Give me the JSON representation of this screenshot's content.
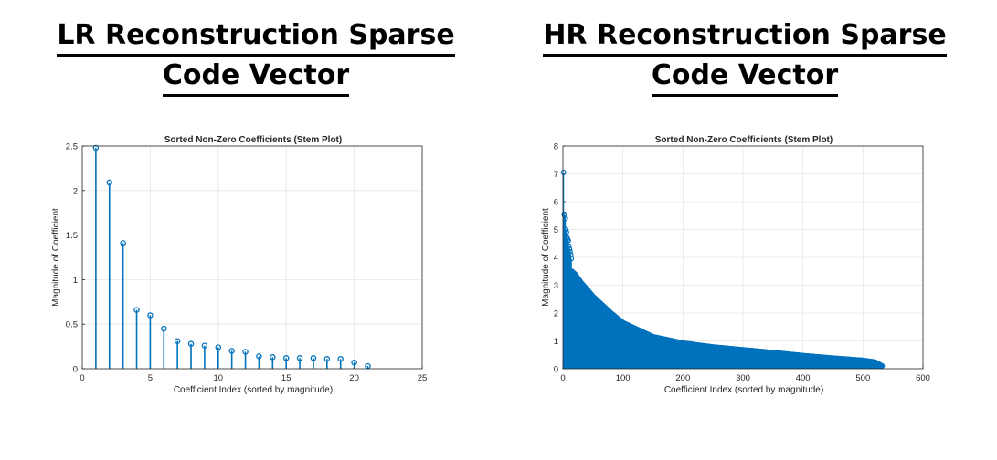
{
  "panels": {
    "left": {
      "heading_line1": "LR Reconstruction Sparse",
      "heading_line2": "Code Vector"
    },
    "right": {
      "heading_line1": "HR Reconstruction Sparse",
      "heading_line2": "Code Vector"
    }
  },
  "chart_data": [
    {
      "type": "stem",
      "title": "Sorted Non-Zero Coefficients (Stem Plot)",
      "xlabel": "Coefficient Index (sorted by magnitude)",
      "ylabel": "Magnitude of Coefficient",
      "xlim": [
        0,
        25
      ],
      "ylim": [
        0,
        2.5
      ],
      "xticks": [
        0,
        5,
        10,
        15,
        20,
        25
      ],
      "yticks": [
        0,
        0.5,
        1,
        1.5,
        2,
        2.5
      ],
      "grid": true,
      "color": "#0072bd",
      "x": [
        1,
        2,
        3,
        4,
        5,
        6,
        7,
        8,
        9,
        10,
        11,
        12,
        13,
        14,
        15,
        16,
        17,
        18,
        19,
        20,
        21
      ],
      "values": [
        2.48,
        2.09,
        1.41,
        0.66,
        0.6,
        0.45,
        0.31,
        0.28,
        0.26,
        0.24,
        0.2,
        0.19,
        0.14,
        0.13,
        0.12,
        0.12,
        0.12,
        0.11,
        0.11,
        0.07,
        0.03
      ]
    },
    {
      "type": "stem",
      "title": "Sorted Non-Zero Coefficients (Stem Plot)",
      "xlabel": "Coefficient Index (sorted by magnitude)",
      "ylabel": "Magnitude of Coefficient",
      "xlim": [
        0,
        600
      ],
      "ylim": [
        0,
        8
      ],
      "xticks": [
        0,
        100,
        200,
        300,
        400,
        500,
        600
      ],
      "yticks": [
        0,
        1,
        2,
        3,
        4,
        5,
        6,
        7,
        8
      ],
      "grid": true,
      "color": "#0072bd",
      "n_points": 532,
      "leading_values": [
        7.05,
        5.55,
        5.5,
        5.4,
        5.0,
        4.9,
        4.7,
        4.65,
        4.6,
        4.4,
        4.3,
        4.2,
        4.1,
        3.95
      ],
      "envelope_x": [
        15,
        20,
        30,
        50,
        80,
        100,
        150,
        200,
        250,
        300,
        350,
        400,
        450,
        500,
        520,
        532
      ],
      "envelope_y": [
        3.5,
        3.4,
        3.1,
        2.6,
        2.0,
        1.65,
        1.15,
        0.92,
        0.78,
        0.68,
        0.58,
        0.47,
        0.38,
        0.3,
        0.24,
        0.1
      ]
    }
  ]
}
